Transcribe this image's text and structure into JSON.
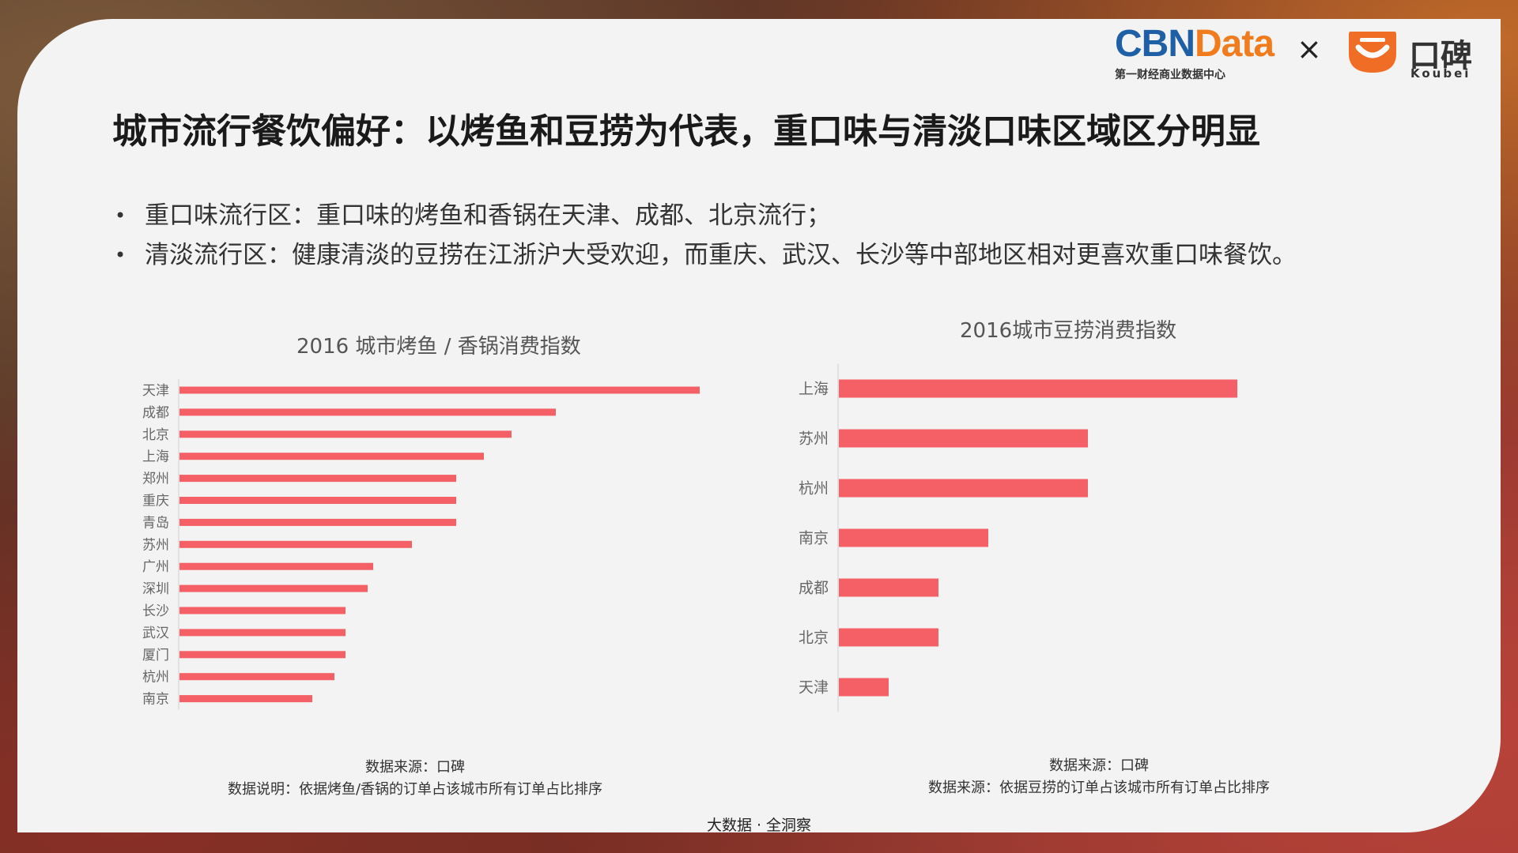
{
  "header": {
    "logo_left_main_a": "CBN",
    "logo_left_main_b": "Data",
    "logo_left_sub": "第一财经商业数据中心",
    "times": "×",
    "logo_right_main": "口碑",
    "logo_right_sub": "Koubei",
    "colors": {
      "cbn_blue": "#1f5fa6",
      "cbn_orange": "#f07c1e",
      "koubei_orange": "#ef6d24"
    }
  },
  "title": "城市流行餐饮偏好：以烤鱼和豆捞为代表，重口味与清淡口味区域区分明显",
  "bullets": [
    "重口味流行区：重口味的烤鱼和香锅在天津、成都、北京流行；",
    "清淡流行区：健康清淡的豆捞在江浙沪大受欢迎，而重庆、武汉、长沙等中部地区相对更喜欢重口味餐饮。"
  ],
  "chart_data": [
    {
      "type": "bar",
      "orientation": "horizontal",
      "title": "2016 城市烤鱼 / 香锅消费指数",
      "categories": [
        "天津",
        "成都",
        "北京",
        "上海",
        "郑州",
        "重庆",
        "青岛",
        "苏州",
        "广州",
        "深圳",
        "长沙",
        "武汉",
        "厦门",
        "杭州",
        "南京"
      ],
      "values": [
        9.4,
        6.8,
        6.0,
        5.5,
        5.0,
        5.0,
        5.0,
        4.2,
        3.5,
        3.4,
        3.0,
        3.0,
        3.0,
        2.8,
        2.4
      ],
      "bar_color": "#f46066",
      "xlabel": "",
      "ylabel": "",
      "grid": false,
      "legend": "none",
      "source": "数据来源：口碑",
      "note": "数据说明：依据烤鱼/香锅的订单占该城市所有订单占比排序"
    },
    {
      "type": "bar",
      "orientation": "horizontal",
      "title": "2016城市豆捞消费指数",
      "categories": [
        "上海",
        "苏州",
        "杭州",
        "南京",
        "成都",
        "北京",
        "天津"
      ],
      "values": [
        8.0,
        5.0,
        5.0,
        3.0,
        2.0,
        2.0,
        1.0
      ],
      "bar_color": "#f46066",
      "xlabel": "",
      "ylabel": "",
      "grid": false,
      "legend": "none",
      "source": "数据来源：口碑",
      "note": "数据来源：依据豆捞的订单占该城市所有订单占比排序"
    }
  ],
  "footer": "大数据 · 全洞察"
}
